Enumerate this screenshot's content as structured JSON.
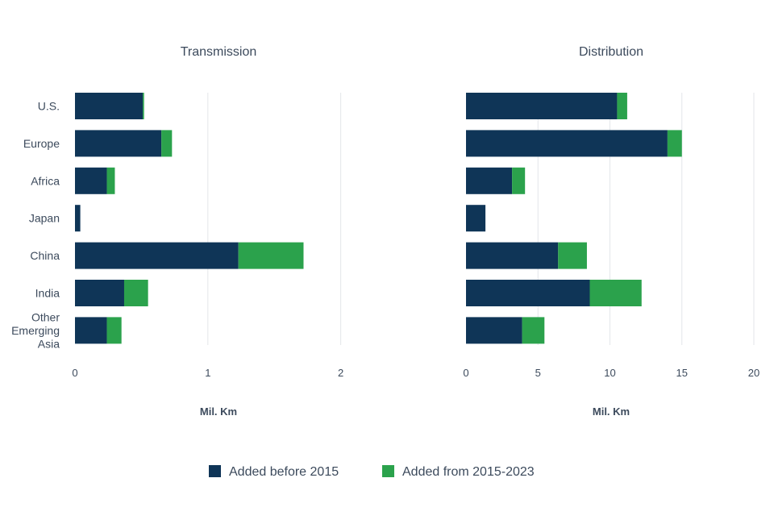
{
  "chart_data": [
    {
      "type": "bar",
      "orientation": "horizontal",
      "stacked": true,
      "title": "Transmission",
      "xlabel": "Mil. Km",
      "ylabel": "",
      "xlim": [
        0,
        2.7
      ],
      "xticks": [
        "0",
        "1",
        "2"
      ],
      "grid": true,
      "categories": [
        "U.S.",
        "Europe",
        "Africa",
        "Japan",
        "China",
        "India",
        "Other Emerging Asia"
      ],
      "series": [
        {
          "name": "Added before 2015",
          "values": [
            0.51,
            0.65,
            0.24,
            0.04,
            1.23,
            0.37,
            0.24
          ]
        },
        {
          "name": "Added from 2015-2023",
          "values": [
            0.01,
            0.08,
            0.06,
            0.0,
            0.49,
            0.18,
            0.11
          ]
        }
      ]
    },
    {
      "type": "bar",
      "orientation": "horizontal",
      "stacked": true,
      "title": "Distribution",
      "xlabel": "Mil. Km",
      "ylabel": "",
      "xlim": [
        0,
        20
      ],
      "xticks": [
        "0",
        "5",
        "10",
        "15",
        "20"
      ],
      "grid": true,
      "categories": [
        "U.S.",
        "Europe",
        "Africa",
        "Japan",
        "China",
        "India",
        "Other Emerging Asia"
      ],
      "series": [
        {
          "name": "Added before 2015",
          "values": [
            10.5,
            14.0,
            3.2,
            1.35,
            6.4,
            8.6,
            3.9
          ]
        },
        {
          "name": "Added from 2015-2023",
          "values": [
            0.7,
            1.0,
            0.9,
            0.0,
            2.0,
            3.6,
            1.55
          ]
        }
      ]
    }
  ],
  "category_labels": [
    [
      "U.S."
    ],
    [
      "Europe"
    ],
    [
      "Africa"
    ],
    [
      "Japan"
    ],
    [
      "China"
    ],
    [
      "India"
    ],
    [
      "Other",
      "Emerging",
      "Asia"
    ]
  ],
  "legend": {
    "placement": "bottom-center",
    "items": [
      {
        "label": "Added before 2015",
        "color": "#0f3557"
      },
      {
        "label": "Added from 2015-2023",
        "color": "#2ba24c"
      }
    ]
  },
  "colors": {
    "before": "#0f3557",
    "after": "#2ba24c",
    "text": "#3c4a5c",
    "grid": "#e3e6ea"
  }
}
